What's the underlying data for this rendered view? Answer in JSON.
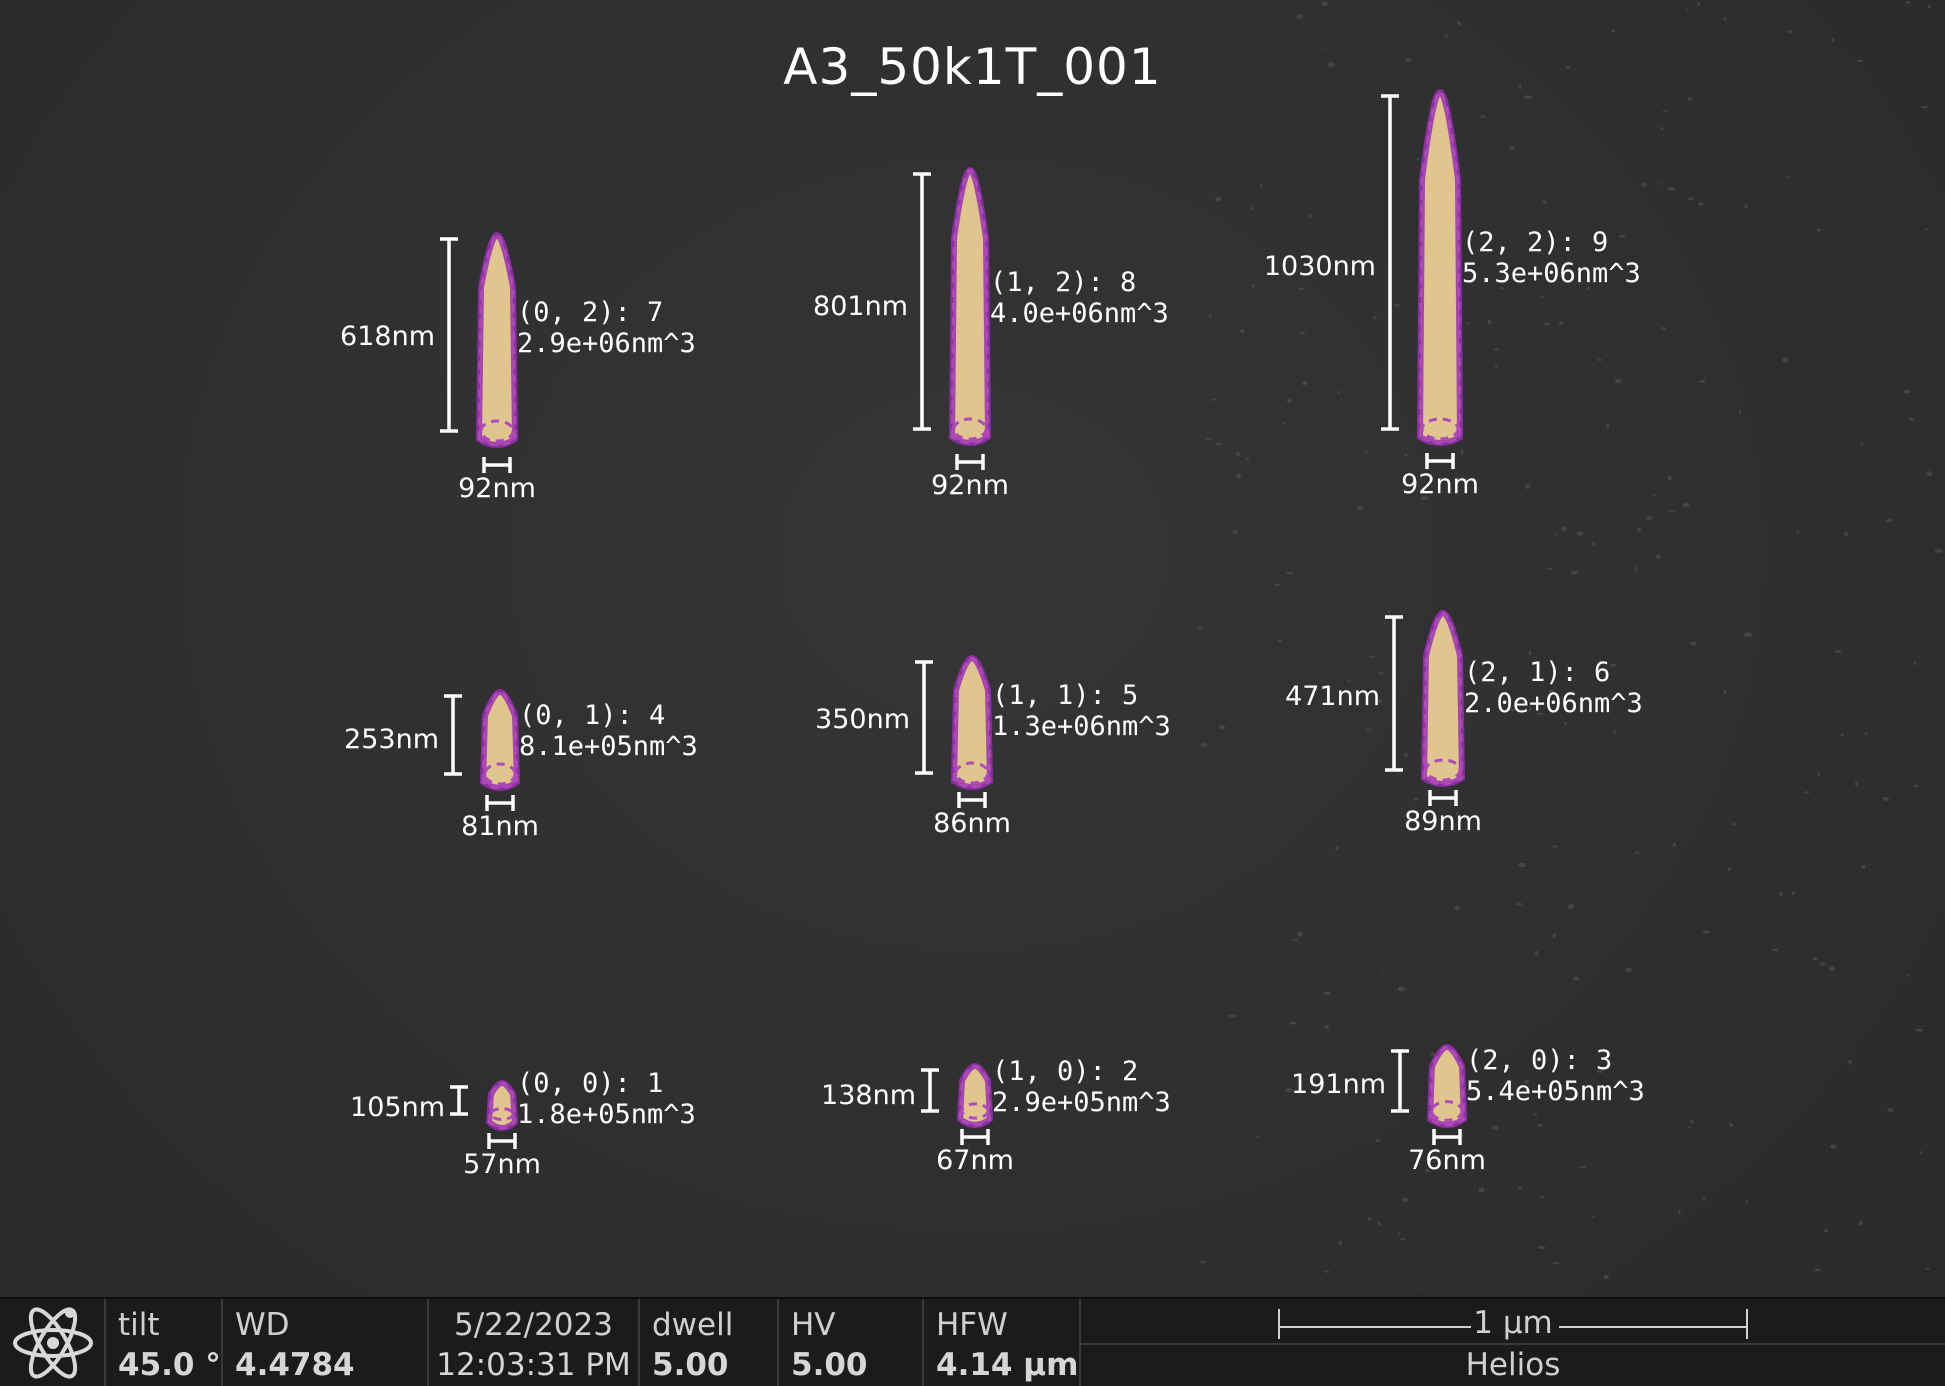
{
  "title": "A3_50k1T_001",
  "pillars": [
    {
      "id": "(0, 2): 7",
      "volume": "2.9e+06nm^3",
      "height": "618nm",
      "width": "92nm"
    },
    {
      "id": "(1, 2): 8",
      "volume": "4.0e+06nm^3",
      "height": "801nm",
      "width": "92nm"
    },
    {
      "id": "(2, 2): 9",
      "volume": "5.3e+06nm^3",
      "height": "1030nm",
      "width": "92nm"
    },
    {
      "id": "(0, 1): 4",
      "volume": "8.1e+05nm^3",
      "height": "253nm",
      "width": "81nm"
    },
    {
      "id": "(1, 1): 5",
      "volume": "1.3e+06nm^3",
      "height": "350nm",
      "width": "86nm"
    },
    {
      "id": "(2, 1): 6",
      "volume": "2.0e+06nm^3",
      "height": "471nm",
      "width": "89nm"
    },
    {
      "id": "(0, 0): 1",
      "volume": "1.8e+05nm^3",
      "height": "105nm",
      "width": "57nm"
    },
    {
      "id": "(1, 0): 2",
      "volume": "2.9e+05nm^3",
      "height": "138nm",
      "width": "67nm"
    },
    {
      "id": "(2, 0): 3",
      "volume": "5.4e+05nm^3",
      "height": "191nm",
      "width": "76nm"
    }
  ],
  "databar": {
    "tilt_label": "tilt",
    "tilt_value": "45.0 °",
    "wd_label": "WD",
    "wd_value": "4.4784 mm",
    "date": "5/22/2023",
    "time": "12:03:31 PM",
    "dwell_label": "dwell",
    "dwell_value": "5.00 µs",
    "hv_label": "HV",
    "hv_value": "5.00 kV",
    "hfw_label": "HFW",
    "hfw_value": "4.14 µm",
    "scale_label": "1 µm",
    "instrument": "Helios",
    "logo_icon": "atom-icon"
  },
  "colors": {
    "pillar_fill": "#e0c58e",
    "outline": "#9a2fb5",
    "dash": "#b04ab8"
  }
}
